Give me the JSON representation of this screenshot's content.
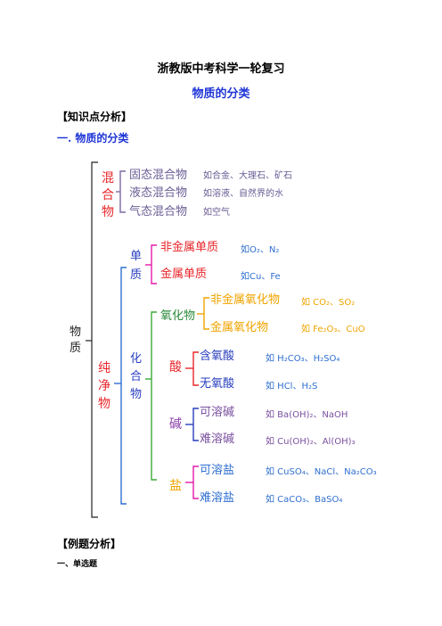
{
  "header": {
    "title": "浙教版中考科学一轮复习",
    "subtitle": "物质的分类"
  },
  "sections": {
    "knowledge": "【知识点分析】",
    "classification": "一. 物质的分类",
    "examples": "【例题分析】",
    "single_choice": "一、单选题"
  },
  "diagram": {
    "root": "物质",
    "mixture": {
      "label": "混合物",
      "items": [
        {
          "name": "固态混合物",
          "example": "如合金、大理石、矿石"
        },
        {
          "name": "液态混合物",
          "example": "如溶液、自然界的水"
        },
        {
          "name": "气态混合物",
          "example": "如空气"
        }
      ]
    },
    "pure": {
      "label": "纯净物",
      "element": {
        "label": "单质",
        "items": [
          {
            "name": "非金属单质",
            "example": "如O₂、N₂"
          },
          {
            "name": "金属单质",
            "example": "如Cu、Fe"
          }
        ]
      },
      "compound": {
        "label": "化合物",
        "oxide": {
          "label": "氧化物",
          "items": [
            {
              "name": "非金属氧化物",
              "example": "如 CO₂、SO₂"
            },
            {
              "name": "金属氧化物",
              "example": "如 Fe₂O₃、CuO"
            }
          ]
        },
        "acid": {
          "label": "酸",
          "items": [
            {
              "name": "含氧酸",
              "example": "如 H₂CO₃、H₂SO₄"
            },
            {
              "name": "无氧酸",
              "example": "如 HCl、H₂S"
            }
          ]
        },
        "base": {
          "label": "碱",
          "items": [
            {
              "name": "可溶碱",
              "example": "如 Ba(OH)₂、NaOH"
            },
            {
              "name": "难溶碱",
              "example": "如 Cu(OH)₂、Al(OH)₃"
            }
          ]
        },
        "salt": {
          "label": "盐",
          "items": [
            {
              "name": "可溶盐",
              "example": "如 CuSO₄、NaCl、Na₂CO₃"
            },
            {
              "name": "难溶盐",
              "example": "如 CaCO₃、BaSO₄"
            }
          ]
        }
      }
    }
  },
  "colors": {
    "black": "#222222",
    "red": "#e8262a",
    "pink": "#e51aa8",
    "purple": "#7a4fa0",
    "blue": "#2f6fd0",
    "green": "#3daa35",
    "orange": "#f0a400",
    "navy": "#2a3fbf",
    "gray_purple": "#7b6aa0"
  }
}
